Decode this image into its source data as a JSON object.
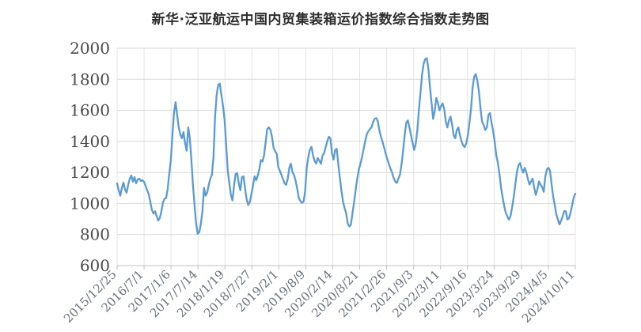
{
  "title": "新华·泛亚航运中国内贸集装箱运价指数综合指数走势图",
  "chart_data": {
    "type": "line",
    "title": "新华·泛亚航运中国内贸集装箱运价指数综合指数走势图",
    "xlabel": "",
    "ylabel": "",
    "ylim": [
      600,
      2000
    ],
    "y_ticks": [
      600,
      800,
      1000,
      1200,
      1400,
      1600,
      1800,
      2000
    ],
    "x_tick_labels": [
      "2015/12/25",
      "2016/7/1",
      "2017/1/6",
      "2017/7/14",
      "2018/1/19",
      "2018/7/27",
      "2019/2/1",
      "2019/8/9",
      "2020/2/14",
      "2020/8/21",
      "2021/2/26",
      "2021/9/3",
      "2022/3/11",
      "2022/9/16",
      "2023/3/24",
      "2023/9/29",
      "2024/4/5",
      "2024/10/11"
    ],
    "x_start": "2015/12/25",
    "x_end": "2024/10/11",
    "grid": true,
    "legend": false,
    "line_color": "#5B9BD5",
    "values_note": "composite freight index, ~weekly samples evenly spaced in time from x_start to x_end",
    "values": [
      1130,
      1085,
      1050,
      1100,
      1135,
      1090,
      1070,
      1120,
      1160,
      1180,
      1140,
      1170,
      1130,
      1155,
      1160,
      1145,
      1150,
      1140,
      1115,
      1085,
      1060,
      1010,
      960,
      935,
      950,
      920,
      890,
      905,
      950,
      1005,
      1030,
      1035,
      1095,
      1190,
      1280,
      1440,
      1585,
      1653,
      1570,
      1490,
      1445,
      1420,
      1460,
      1390,
      1340,
      1490,
      1420,
      1280,
      1120,
      990,
      870,
      805,
      815,
      870,
      950,
      1100,
      1050,
      1070,
      1120,
      1160,
      1185,
      1300,
      1560,
      1700,
      1765,
      1772,
      1700,
      1630,
      1540,
      1380,
      1215,
      1130,
      1055,
      1020,
      1115,
      1190,
      1195,
      1130,
      1085,
      1170,
      1175,
      1095,
      1025,
      990,
      1010,
      1060,
      1115,
      1175,
      1150,
      1180,
      1220,
      1280,
      1270,
      1310,
      1395,
      1480,
      1490,
      1475,
      1430,
      1360,
      1337,
      1320,
      1235,
      1210,
      1185,
      1157,
      1130,
      1120,
      1160,
      1230,
      1257,
      1200,
      1183,
      1145,
      1095,
      1035,
      1015,
      1004,
      1012,
      1080,
      1230,
      1300,
      1347,
      1365,
      1310,
      1273,
      1257,
      1293,
      1275,
      1255,
      1309,
      1324,
      1363,
      1400,
      1430,
      1420,
      1320,
      1283,
      1345,
      1352,
      1250,
      1165,
      1080,
      1010,
      970,
      935,
      870,
      852,
      865,
      940,
      1010,
      1090,
      1160,
      1220,
      1255,
      1300,
      1350,
      1400,
      1445,
      1465,
      1480,
      1490,
      1525,
      1545,
      1550,
      1530,
      1470,
      1430,
      1395,
      1360,
      1320,
      1285,
      1255,
      1225,
      1200,
      1165,
      1142,
      1132,
      1160,
      1185,
      1250,
      1340,
      1440,
      1520,
      1535,
      1490,
      1440,
      1390,
      1345,
      1385,
      1470,
      1604,
      1712,
      1830,
      1900,
      1930,
      1936,
      1870,
      1750,
      1650,
      1545,
      1594,
      1680,
      1650,
      1600,
      1626,
      1645,
      1611,
      1530,
      1490,
      1534,
      1560,
      1509,
      1440,
      1420,
      1473,
      1490,
      1440,
      1400,
      1375,
      1363,
      1388,
      1440,
      1520,
      1610,
      1747,
      1817,
      1834,
      1790,
      1722,
      1611,
      1525,
      1506,
      1473,
      1490,
      1570,
      1583,
      1520,
      1465,
      1396,
      1310,
      1260,
      1190,
      1100,
      1040,
      983,
      940,
      916,
      896,
      920,
      975,
      1040,
      1120,
      1200,
      1245,
      1260,
      1224,
      1199,
      1230,
      1200,
      1158,
      1122,
      1142,
      1160,
      1100,
      1055,
      1091,
      1142,
      1120,
      1106,
      1075,
      1173,
      1219,
      1230,
      1210,
      1122,
      1045,
      988,
      930,
      895,
      865,
      890,
      917,
      952,
      950,
      896,
      906,
      942,
      990,
      1040,
      1063
    ]
  },
  "colors": {
    "background": "#FFFFFF",
    "line": "#5B9BD5",
    "h_gridline": "#D9D9D9",
    "v_gridline": "#E4E4E4",
    "axis": "#BFBFBF",
    "y_label": "#4a4a4a",
    "x_label": "#67707e",
    "title": "#2e2e2e"
  }
}
